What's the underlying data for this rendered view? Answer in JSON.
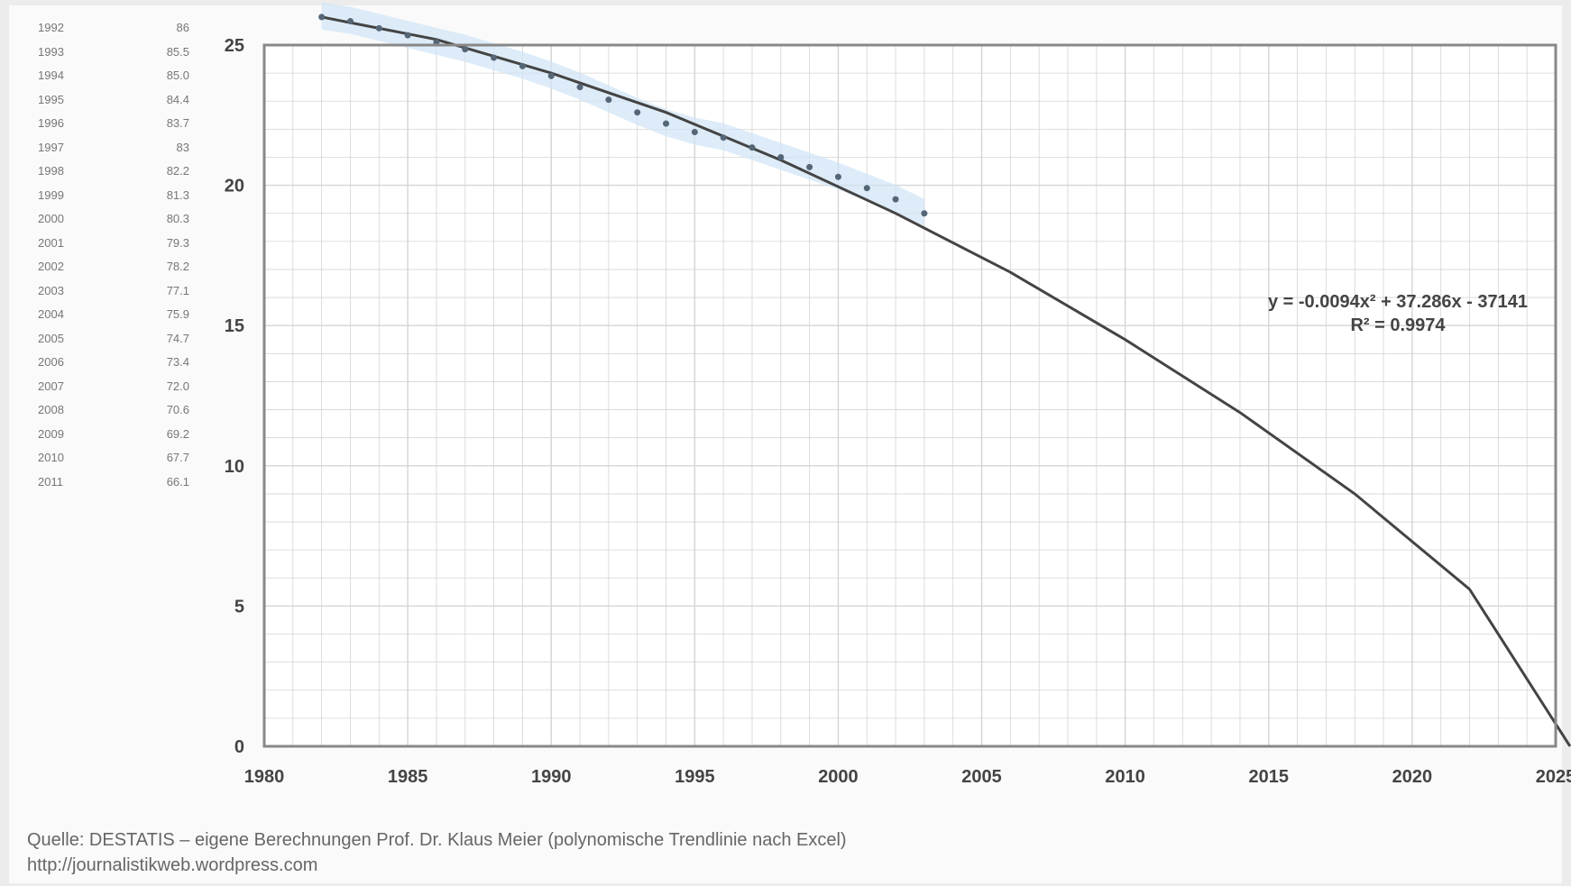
{
  "table": {
    "rows": [
      {
        "year": "1992",
        "value": "86"
      },
      {
        "year": "1993",
        "value": "85.5"
      },
      {
        "year": "1994",
        "value": "85.0"
      },
      {
        "year": "1995",
        "value": "84.4"
      },
      {
        "year": "1996",
        "value": "83.7"
      },
      {
        "year": "1997",
        "value": "83"
      },
      {
        "year": "1998",
        "value": "82.2"
      },
      {
        "year": "1999",
        "value": "81.3"
      },
      {
        "year": "2000",
        "value": "80.3"
      },
      {
        "year": "2001",
        "value": "79.3"
      },
      {
        "year": "2002",
        "value": "78.2"
      },
      {
        "year": "2003",
        "value": "77.1"
      },
      {
        "year": "2004",
        "value": "75.9"
      },
      {
        "year": "2005",
        "value": "74.7"
      },
      {
        "year": "2006",
        "value": "73.4"
      },
      {
        "year": "2007",
        "value": "72.0"
      },
      {
        "year": "2008",
        "value": "70.6"
      },
      {
        "year": "2009",
        "value": "69.2"
      },
      {
        "year": "2010",
        "value": "67.7"
      },
      {
        "year": "2011",
        "value": "66.1"
      }
    ]
  },
  "equation": {
    "line1": "y = -0.0094x² + 37.286x - 37141",
    "line2": "R² = 0.9974"
  },
  "source": {
    "line1": "Quelle: DESTATIS – eigene Berechnungen Prof. Dr. Klaus Meier (polynomische Trendlinie nach Excel)",
    "line2": "http://journalistikweb.wordpress.com"
  },
  "colors": {
    "curve": "#444444",
    "points": "#556677",
    "highlight": "#cfe4f5",
    "grid": "#d4d4d4",
    "frame": "#888888"
  },
  "chart_data": {
    "type": "scatter",
    "title": "",
    "xlabel": "",
    "ylabel": "",
    "xlim": [
      1980,
      2025
    ],
    "ylim": [
      0,
      25
    ],
    "x_ticks": [
      "1980",
      "1985",
      "1990",
      "1995",
      "2000",
      "2005",
      "2010",
      "2015",
      "2020",
      "2025"
    ],
    "y_ticks": [
      "0",
      "5",
      "10",
      "15",
      "20",
      "25"
    ],
    "grid": true,
    "series": [
      {
        "kind": "points",
        "x": [
          1982,
          1983,
          1984,
          1985,
          1986,
          1987,
          1988,
          1989,
          1990,
          1991,
          1992,
          1993,
          1994,
          1995,
          1996,
          1997,
          1998,
          1999,
          2000,
          2001,
          2002,
          2003
        ],
        "y": [
          26.0,
          25.85,
          25.6,
          25.35,
          25.1,
          24.85,
          24.55,
          24.25,
          23.9,
          23.5,
          23.05,
          22.6,
          22.2,
          21.9,
          21.7,
          21.35,
          21.0,
          20.65,
          20.3,
          19.9,
          19.5,
          19.0
        ]
      },
      {
        "kind": "trendline",
        "x": [
          1982,
          1986,
          1990,
          1994,
          1998,
          2002,
          2006,
          2010,
          2014,
          2018,
          2022,
          2025.5
        ],
        "y": [
          26.0,
          25.2,
          24.0,
          22.6,
          20.9,
          19.0,
          16.9,
          14.5,
          11.9,
          9.0,
          5.6,
          0.0
        ]
      }
    ]
  }
}
